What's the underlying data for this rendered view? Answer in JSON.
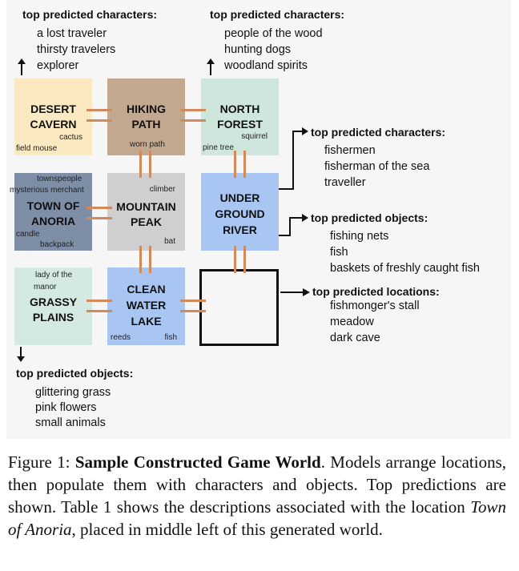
{
  "top_left": {
    "header": "top predicted characters:",
    "items": [
      "a lost traveler",
      "thirsty travelers",
      "explorer"
    ]
  },
  "top_right": {
    "header": "top predicted characters:",
    "items": [
      "people of the wood",
      "hunting dogs",
      "woodland spirits"
    ]
  },
  "right_characters": {
    "header": "top predicted characters:",
    "items": [
      "fishermen",
      "fisherman of the sea",
      "traveller"
    ]
  },
  "right_objects": {
    "header": "top predicted objects:",
    "items": [
      "fishing nets",
      "fish",
      "baskets of freshly caught fish"
    ]
  },
  "right_locations": {
    "header": "top predicted locations:",
    "items": [
      "fishmonger's stall",
      "meadow",
      "dark cave"
    ]
  },
  "bottom_left": {
    "header": "top predicted objects:",
    "items": [
      "glittering grass",
      "pink flowers",
      "small animals"
    ]
  },
  "grid": {
    "desert": {
      "name1": "DESERT",
      "name2": "CAVERN",
      "a": "cactus",
      "b": "field mouse",
      "color": "#fbe9c2"
    },
    "hiking": {
      "name1": "HIKING",
      "name2": "PATH",
      "a": "worn path",
      "color": "#c2a88f"
    },
    "north": {
      "name1": "NORTH",
      "name2": "FOREST",
      "a": "squirrel",
      "b": "pine tree",
      "color": "#cfe6dd"
    },
    "anoria": {
      "name1": "TOWN OF",
      "name2": "ANORIA",
      "a": "townspeople",
      "b": "mysterious merchant",
      "c": "candle",
      "d": "backpack",
      "color": "#7d8ea6"
    },
    "mountain": {
      "name1": "MOUNTAIN",
      "name2": "PEAK",
      "a": "climber",
      "b": "bat",
      "color": "#cfcfcf"
    },
    "river": {
      "name1": "UNDER",
      "name2": "GROUND",
      "name3": "RIVER",
      "color": "#a9c6f3"
    },
    "grassy": {
      "name1": "GRASSY",
      "name2": "PLAINS",
      "a": "lady of the",
      "b": "manor",
      "color": "#d3e9e1"
    },
    "lake": {
      "name1": "CLEAN",
      "name2": "WATER",
      "name3": "LAKE",
      "a": "reeds",
      "b": "fish",
      "color": "#a9c6f3"
    }
  },
  "caption": {
    "label": "Figure 1: ",
    "title": "Sample Constructed Game World",
    "text1": ". Models arrange locations, then populate them with characters and objects. Top predictions are shown. Table 1 shows the descriptions associated with the location ",
    "italic": "Town of Anoria",
    "text2": ", placed in middle left of this generated world."
  }
}
